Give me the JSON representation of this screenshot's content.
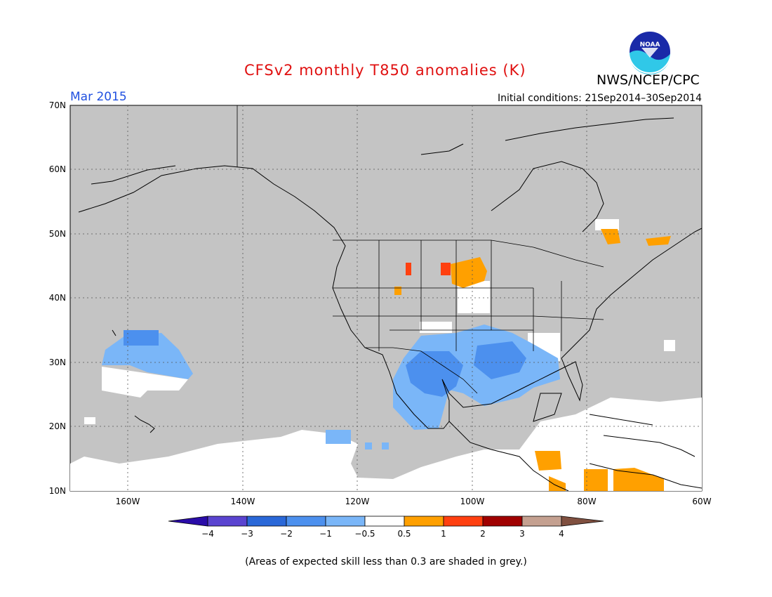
{
  "title": "CFSv2 monthly T850 anomalies (K)",
  "organization": "NWS/NCEP/CPC",
  "logo_text": "NOAA",
  "period": "Mar 2015",
  "initial_conditions": "Initial conditions: 21Sep2014–30Sep2014",
  "footnote": "(Areas of expected skill less than 0.3 are shaded in grey.)",
  "colors": {
    "title": "#e01010",
    "period": "#2050e0",
    "skill_grey": "#c4c4c4"
  },
  "map": {
    "lat_labels": [
      "70N",
      "60N",
      "50N",
      "40N",
      "30N",
      "20N",
      "10N"
    ],
    "lon_labels": [
      "160W",
      "140W",
      "120W",
      "100W",
      "80W",
      "60W"
    ]
  },
  "colorbar": {
    "labels": [
      "−4",
      "−3",
      "−2",
      "−1",
      "−0.5",
      "0.5",
      "1",
      "2",
      "3",
      "4"
    ],
    "colors": [
      "#2a0ca8",
      "#5a44d0",
      "#2a68d8",
      "#4c90ee",
      "#7ab6f8",
      "#ffffff",
      "#ffa000",
      "#ff4010",
      "#a00000",
      "#c4a090",
      "#805040"
    ]
  }
}
